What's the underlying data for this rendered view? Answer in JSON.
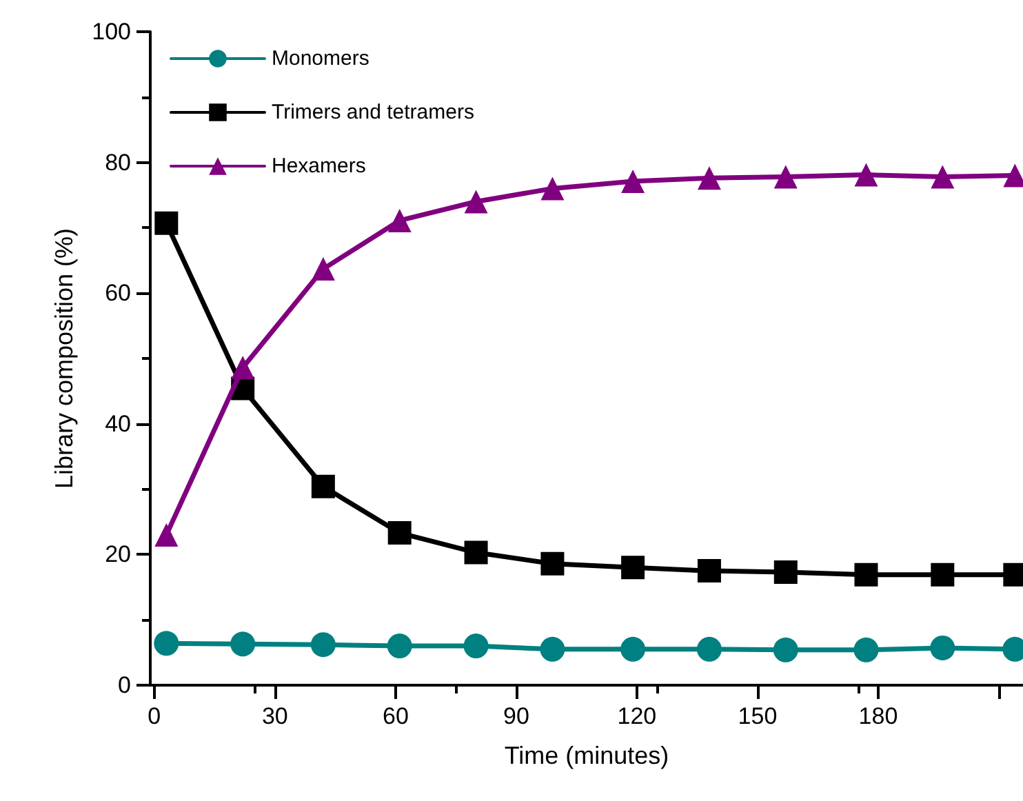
{
  "chart_data": {
    "type": "line",
    "xlabel": "Time (minutes)",
    "ylabel": "Library composition (%)",
    "x": [
      3,
      22,
      42,
      61,
      80,
      99,
      119,
      138,
      157,
      177,
      196,
      214
    ],
    "xlim": [
      -1,
      216
    ],
    "xticks": [
      0,
      30,
      60,
      90,
      120,
      150,
      180,
      {
        "value": 210,
        "label": null
      }
    ],
    "ylim": [
      0,
      100
    ],
    "yticks": [
      0,
      20,
      40,
      60,
      80,
      100
    ],
    "legend": "top left",
    "grid": false,
    "series": [
      {
        "name": "Monomers",
        "color": "#008080",
        "marker": "circle",
        "values": [
          6.4,
          6.3,
          6.2,
          6.0,
          6.0,
          5.5,
          5.5,
          5.5,
          5.4,
          5.4,
          5.7,
          5.5
        ]
      },
      {
        "name": "Trimers and tetramers",
        "color": "#000000",
        "marker": "square",
        "values": [
          70.7,
          45.4,
          30.4,
          23.3,
          20.3,
          18.6,
          18.0,
          17.5,
          17.3,
          16.9,
          16.9,
          16.9
        ]
      },
      {
        "name": "Hexamers",
        "color": "#800080",
        "marker": "triangle",
        "values": [
          23.0,
          48.6,
          63.7,
          71.1,
          74.0,
          76.0,
          77.1,
          77.6,
          77.8,
          78.1,
          77.8,
          78.0
        ]
      }
    ]
  }
}
